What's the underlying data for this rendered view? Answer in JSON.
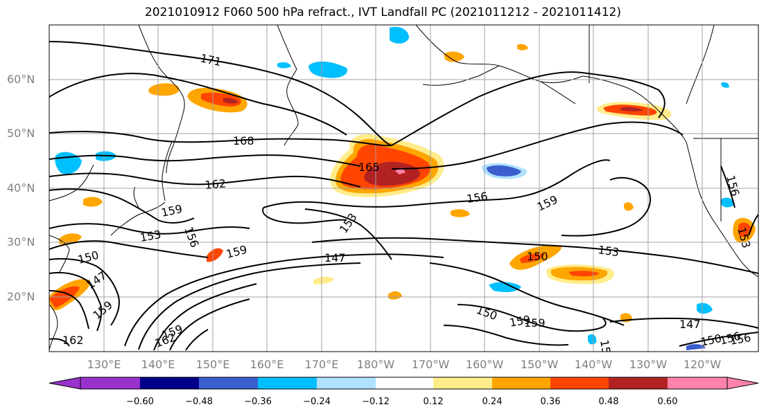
{
  "title": "2021010912 F060 500 hPa refract., IVT Landfall PC (2021011212 - 2021011412)",
  "lat_labels": [
    "60°N",
    "50°N",
    "40°N",
    "30°N",
    "20°N"
  ],
  "lon_labels": [
    "130°E",
    "140°E",
    "150°E",
    "160°E",
    "170°E",
    "180°W",
    "170°W",
    "160°W",
    "150°W",
    "140°W",
    "130°W",
    "120°W"
  ],
  "contour_labels": [
    "171",
    "168",
    "165",
    "162",
    "159",
    "159",
    "159",
    "159",
    "156",
    "156",
    "156",
    "156",
    "153",
    "153",
    "153",
    "153",
    "150",
    "150",
    "150",
    "150",
    "147",
    "147",
    "147",
    "162",
    "159",
    "162",
    "159",
    "159",
    "150",
    "156"
  ],
  "colorbar": {
    "ticks": [
      "−0.60",
      "−0.48",
      "−0.36",
      "−0.24",
      "−0.12",
      "0.12",
      "0.24",
      "0.36",
      "0.48",
      "0.60"
    ],
    "colors": [
      "#9932cc",
      "#00008b",
      "#3a5fcd",
      "#00bfff",
      "#b0e2ff",
      "#ffffff",
      "#ffec8b",
      "#ffa500",
      "#ff4500",
      "#b22222",
      "#ff82ab"
    ]
  }
}
